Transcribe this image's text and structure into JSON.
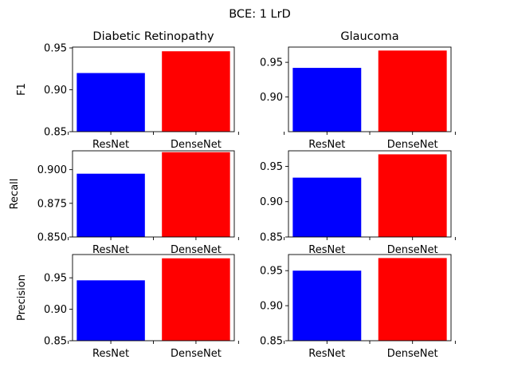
{
  "chart_data": {
    "suptitle": "BCE: 1 LrD",
    "type": "bar",
    "categories": [
      "ResNet",
      "DenseNet"
    ],
    "colors": [
      "#0000ff",
      "#ff0000"
    ],
    "subplots": [
      {
        "row": 0,
        "col": 0,
        "title": "Diabetic Retinopathy",
        "ylabel": "F1",
        "values": [
          0.92,
          0.946
        ],
        "ylim": [
          0.85,
          0.951
        ],
        "yticks": [
          0.85,
          0.9,
          0.95
        ],
        "ytick_labels": [
          "0.85",
          "0.90",
          "0.95"
        ]
      },
      {
        "row": 0,
        "col": 1,
        "title": "Glaucoma",
        "ylabel": "",
        "values": [
          0.942,
          0.967
        ],
        "ylim": [
          0.85,
          0.972
        ],
        "yticks": [
          0.9,
          0.95
        ],
        "ytick_labels": [
          "0.90",
          "0.95"
        ]
      },
      {
        "row": 1,
        "col": 0,
        "title": "",
        "ylabel": "Recall",
        "values": [
          0.897,
          0.913
        ],
        "ylim": [
          0.85,
          0.914
        ],
        "yticks": [
          0.85,
          0.875,
          0.9
        ],
        "ytick_labels": [
          "0.850",
          "0.875",
          "0.900"
        ]
      },
      {
        "row": 1,
        "col": 1,
        "title": "",
        "ylabel": "",
        "values": [
          0.934,
          0.967
        ],
        "ylim": [
          0.85,
          0.972
        ],
        "yticks": [
          0.85,
          0.9,
          0.95
        ],
        "ytick_labels": [
          "0.85",
          "0.90",
          "0.95"
        ]
      },
      {
        "row": 2,
        "col": 0,
        "title": "",
        "ylabel": "Precision",
        "values": [
          0.946,
          0.981
        ],
        "ylim": [
          0.85,
          0.987
        ],
        "yticks": [
          0.85,
          0.9,
          0.95
        ],
        "ytick_labels": [
          "0.85",
          "0.90",
          "0.95"
        ]
      },
      {
        "row": 2,
        "col": 1,
        "title": "",
        "ylabel": "",
        "values": [
          0.95,
          0.968
        ],
        "ylim": [
          0.85,
          0.973
        ],
        "yticks": [
          0.85,
          0.9,
          0.95
        ],
        "ytick_labels": [
          "0.85",
          "0.90",
          "0.95"
        ]
      }
    ],
    "grid": false,
    "legend": "none"
  }
}
